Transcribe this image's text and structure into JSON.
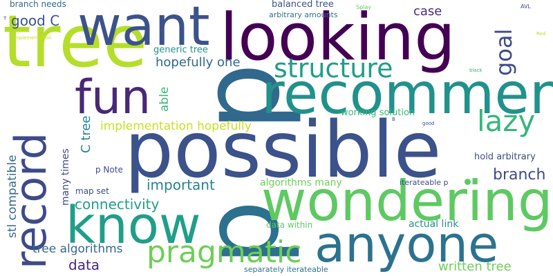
{
  "words": [
    {
      "text": "p",
      "color": "#31688e"
    },
    {
      "text": "p",
      "color": "#2c718e"
    },
    {
      "text": "possible",
      "color": "#3b528b"
    },
    {
      "text": "looking",
      "color": "#440154"
    },
    {
      "text": "tree",
      "color": "#b5de2b"
    },
    {
      "text": "want",
      "color": "#3b528b"
    },
    {
      "text": "recommend",
      "color": "#21918c"
    },
    {
      "text": "wondering",
      "color": "#5ec962"
    },
    {
      "text": "anyone",
      "color": "#2c728e"
    },
    {
      "text": "know",
      "color": "#1f9e89"
    },
    {
      "text": "record",
      "color": "#3e4a89"
    },
    {
      "text": "fun",
      "color": "#482878"
    },
    {
      "text": "structure",
      "color": "#1f9e89"
    },
    {
      "text": "pragmatic",
      "color": "#6ece58"
    },
    {
      "text": "lazy",
      "color": "#35b779"
    },
    {
      "text": "goal",
      "color": "#3e4a89"
    },
    {
      "text": "good C",
      "color": "#3b528b"
    },
    {
      "text": "hopefully one",
      "color": "#31688e"
    },
    {
      "text": "implementation hopefully",
      "color": "#c8e020"
    },
    {
      "text": "case",
      "color": "#472d7b"
    },
    {
      "text": "important",
      "color": "#26828e"
    },
    {
      "text": "connectivity",
      "color": "#1f9e89"
    },
    {
      "text": "branch",
      "color": "#3e4a89"
    },
    {
      "text": "data",
      "color": "#482878"
    },
    {
      "text": "written tree",
      "color": "#6ece58"
    },
    {
      "text": "tree algorithms",
      "color": "#31688e"
    },
    {
      "text": "stl compatible",
      "color": "#31688e"
    },
    {
      "text": "C tree",
      "color": "#26828e"
    },
    {
      "text": "able",
      "color": "#35b779"
    },
    {
      "text": "many times",
      "color": "#3e4a89"
    },
    {
      "text": "algorithms many",
      "color": "#6ece58"
    },
    {
      "text": "actual link",
      "color": "#21918c"
    },
    {
      "text": "generic tree",
      "color": "#21918c"
    },
    {
      "text": "working solution",
      "color": "#35b779"
    },
    {
      "text": "hold arbitrary",
      "color": "#3e4a89"
    },
    {
      "text": "balanced tree",
      "color": "#3b528b"
    },
    {
      "text": "branch needs",
      "color": "#31688e"
    },
    {
      "text": "arbitrary amounts",
      "color": "#2c728e"
    },
    {
      "text": "map set",
      "color": "#3e4a89"
    },
    {
      "text": "p Note",
      "color": "#3e4a89"
    },
    {
      "text": "data within",
      "color": "#5ec962"
    },
    {
      "text": "iterateable p",
      "color": "#3e4a89"
    },
    {
      "text": "separately iterateable",
      "color": "#2c728e"
    },
    {
      "text": "implementation",
      "color": "#c8e020"
    },
    {
      "text": "Splay",
      "color": "#5ec962"
    },
    {
      "text": "AVL",
      "color": "#3e4a89"
    },
    {
      "text": "Red",
      "color": "#b5de2b"
    },
    {
      "text": "black",
      "color": "#35b779"
    },
    {
      "text": "good",
      "color": "#3e4a89"
    },
    {
      "text": "B",
      "color": "#3e4a89"
    },
    {
      "text": "T",
      "color": "#3e4a89"
    }
  ]
}
